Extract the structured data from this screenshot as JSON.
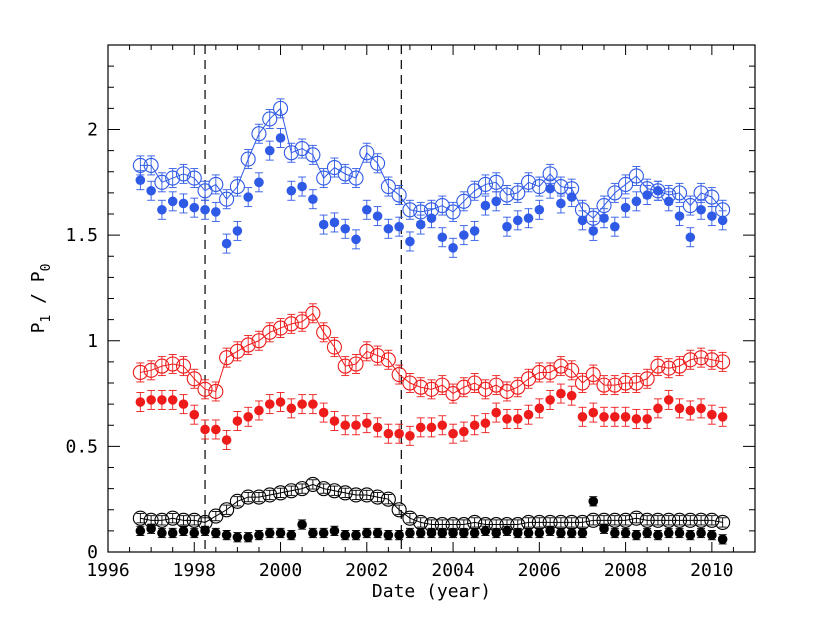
{
  "chart_data": {
    "type": "scatter",
    "title": "",
    "xlabel": "Date (year)",
    "ylabel": {
      "base1": "P",
      "sub1": "1",
      "sep": " / ",
      "base2": "P",
      "sub2": "0"
    },
    "xlim": [
      1996,
      2011
    ],
    "ylim": [
      0,
      2.4
    ],
    "x_ticks": [
      1996,
      1998,
      2000,
      2002,
      2004,
      2006,
      2008,
      2010
    ],
    "y_ticks": [
      0,
      0.5,
      1,
      1.5,
      2
    ],
    "y_tick_labels": [
      "0",
      "0.5",
      "1",
      "1.5",
      "2"
    ],
    "vlines": [
      1998.25,
      2002.8
    ],
    "grid": false,
    "colors": {
      "blue": "#2f5ae6",
      "red": "#ee1b1b",
      "black": "#000000"
    },
    "x": [
      1996.75,
      1997.0,
      1997.25,
      1997.5,
      1997.75,
      1998.0,
      1998.25,
      1998.5,
      1998.75,
      1999.0,
      1999.25,
      1999.5,
      1999.75,
      2000.0,
      2000.25,
      2000.5,
      2000.75,
      2001.0,
      2001.25,
      2001.5,
      2001.75,
      2002.0,
      2002.25,
      2002.5,
      2002.75,
      2003.0,
      2003.25,
      2003.5,
      2003.75,
      2004.0,
      2004.25,
      2004.5,
      2004.75,
      2005.0,
      2005.25,
      2005.5,
      2005.75,
      2006.0,
      2006.25,
      2006.5,
      2006.75,
      2007.0,
      2007.25,
      2007.5,
      2007.75,
      2008.0,
      2008.25,
      2008.5,
      2008.75,
      2009.0,
      2009.25,
      2009.5,
      2009.75,
      2010.0,
      2010.25
    ],
    "series": [
      {
        "color": "blue",
        "marker": "open",
        "values": [
          1.83,
          1.83,
          1.75,
          1.77,
          1.79,
          1.77,
          1.71,
          1.74,
          1.67,
          1.73,
          1.86,
          1.98,
          2.05,
          2.1,
          1.89,
          1.91,
          1.88,
          1.77,
          1.82,
          1.79,
          1.77,
          1.89,
          1.84,
          1.73,
          1.69,
          1.62,
          1.61,
          1.62,
          1.64,
          1.61,
          1.66,
          1.71,
          1.74,
          1.75,
          1.69,
          1.7,
          1.75,
          1.73,
          1.79,
          1.73,
          1.72,
          1.62,
          1.58,
          1.64,
          1.7,
          1.74,
          1.78,
          1.72,
          1.71,
          1.69,
          1.7,
          1.64,
          1.7,
          1.68,
          1.62
        ]
      },
      {
        "color": "blue",
        "marker": "filled",
        "values": [
          1.76,
          1.71,
          1.62,
          1.66,
          1.65,
          1.63,
          1.62,
          1.61,
          1.46,
          1.52,
          1.68,
          1.75,
          1.9,
          1.96,
          1.71,
          1.73,
          1.67,
          1.55,
          1.56,
          1.53,
          1.48,
          1.62,
          1.59,
          1.53,
          1.54,
          1.47,
          1.55,
          1.58,
          1.49,
          1.44,
          1.5,
          1.52,
          1.64,
          1.66,
          1.54,
          1.57,
          1.58,
          1.62,
          1.72,
          1.65,
          1.68,
          1.57,
          1.52,
          1.58,
          1.54,
          1.63,
          1.66,
          1.69,
          1.71,
          1.66,
          1.59,
          1.49,
          1.62,
          1.59,
          1.57
        ]
      },
      {
        "color": "red",
        "marker": "open",
        "values": [
          0.85,
          0.86,
          0.88,
          0.89,
          0.88,
          0.82,
          0.77,
          0.76,
          0.92,
          0.95,
          0.98,
          1.0,
          1.04,
          1.06,
          1.08,
          1.09,
          1.13,
          1.04,
          0.97,
          0.88,
          0.89,
          0.95,
          0.93,
          0.91,
          0.84,
          0.8,
          0.78,
          0.77,
          0.79,
          0.75,
          0.78,
          0.8,
          0.77,
          0.79,
          0.76,
          0.78,
          0.82,
          0.85,
          0.85,
          0.88,
          0.86,
          0.8,
          0.84,
          0.79,
          0.79,
          0.8,
          0.8,
          0.82,
          0.88,
          0.87,
          0.88,
          0.91,
          0.92,
          0.91,
          0.9
        ]
      },
      {
        "color": "red",
        "marker": "filled",
        "values": [
          0.71,
          0.72,
          0.72,
          0.72,
          0.7,
          0.65,
          0.58,
          0.58,
          0.53,
          0.62,
          0.64,
          0.67,
          0.7,
          0.71,
          0.68,
          0.7,
          0.7,
          0.66,
          0.62,
          0.6,
          0.6,
          0.61,
          0.59,
          0.56,
          0.56,
          0.55,
          0.59,
          0.59,
          0.6,
          0.56,
          0.57,
          0.6,
          0.61,
          0.66,
          0.63,
          0.63,
          0.65,
          0.68,
          0.72,
          0.75,
          0.74,
          0.64,
          0.66,
          0.64,
          0.64,
          0.64,
          0.63,
          0.63,
          0.68,
          0.72,
          0.68,
          0.67,
          0.68,
          0.65,
          0.64
        ]
      },
      {
        "color": "black",
        "marker": "open",
        "values": [
          0.16,
          0.15,
          0.15,
          0.16,
          0.15,
          0.15,
          0.14,
          0.17,
          0.2,
          0.24,
          0.26,
          0.26,
          0.27,
          0.28,
          0.29,
          0.3,
          0.32,
          0.3,
          0.29,
          0.28,
          0.27,
          0.27,
          0.26,
          0.25,
          0.2,
          0.16,
          0.14,
          0.13,
          0.13,
          0.13,
          0.13,
          0.14,
          0.13,
          0.13,
          0.13,
          0.13,
          0.14,
          0.14,
          0.14,
          0.14,
          0.14,
          0.14,
          0.15,
          0.15,
          0.15,
          0.15,
          0.16,
          0.15,
          0.15,
          0.15,
          0.15,
          0.15,
          0.15,
          0.15,
          0.14
        ]
      },
      {
        "color": "black",
        "marker": "filled",
        "values": [
          0.1,
          0.11,
          0.09,
          0.09,
          0.1,
          0.09,
          0.1,
          0.09,
          0.08,
          0.07,
          0.07,
          0.08,
          0.09,
          0.09,
          0.08,
          0.13,
          0.09,
          0.09,
          0.1,
          0.08,
          0.08,
          0.09,
          0.09,
          0.08,
          0.08,
          0.09,
          0.09,
          0.09,
          0.09,
          0.09,
          0.09,
          0.09,
          0.1,
          0.09,
          0.1,
          0.09,
          0.09,
          0.09,
          0.1,
          0.09,
          0.09,
          0.09,
          0.24,
          0.11,
          0.09,
          0.09,
          0.08,
          0.09,
          0.08,
          0.09,
          0.09,
          0.08,
          0.09,
          0.08,
          0.06
        ]
      }
    ]
  }
}
